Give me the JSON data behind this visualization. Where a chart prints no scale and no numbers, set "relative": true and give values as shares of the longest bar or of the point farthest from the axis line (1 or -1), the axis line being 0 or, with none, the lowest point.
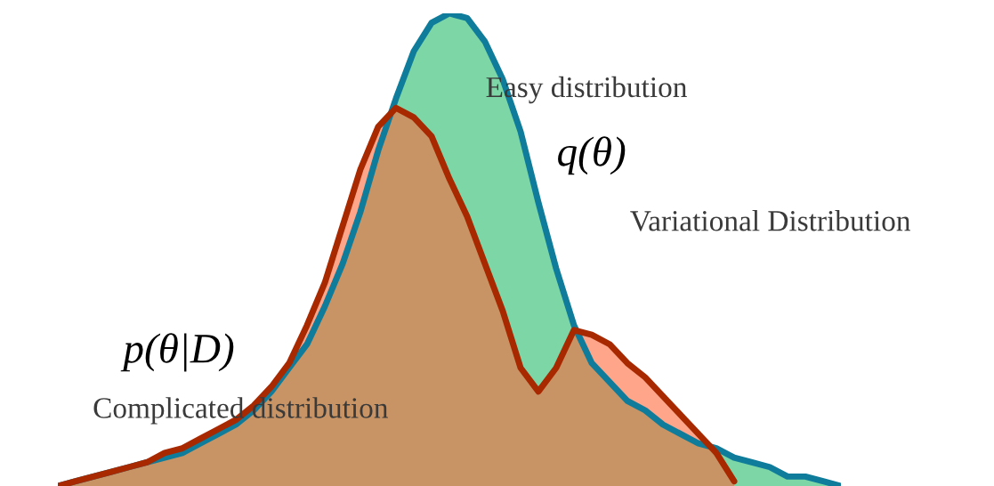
{
  "chart_data": {
    "type": "area",
    "relative": true,
    "categories": [
      null,
      null,
      null,
      null,
      null,
      null,
      null,
      null,
      null,
      null,
      null,
      null,
      null,
      null,
      null,
      null,
      null,
      null,
      null,
      null,
      null,
      null,
      null,
      null,
      null,
      null,
      null,
      null,
      null,
      null,
      null,
      null,
      null,
      null,
      null,
      null,
      null,
      null,
      null,
      null,
      null,
      null,
      null,
      null,
      null
    ],
    "series": [
      {
        "color": "#0e7c9a",
        "values": [
          0,
          0.01,
          0.02,
          0.03,
          0.04,
          0.05,
          0.06,
          0.07,
          0.09,
          0.11,
          0.13,
          0.16,
          0.2,
          0.25,
          0.3,
          0.38,
          0.47,
          0.58,
          0.71,
          0.82,
          0.92,
          0.98,
          1,
          0.99,
          0.94,
          0.86,
          0.75,
          0.6,
          0.46,
          0.34,
          0.26,
          0.22,
          0.18,
          0.16,
          0.13,
          0.11,
          0.09,
          0.08,
          0.06,
          0.05,
          0.04,
          0.02,
          0.02,
          0.01,
          0
        ]
      },
      {
        "color": "#a82800",
        "values": [
          0,
          0.01,
          0.02,
          0.03,
          0.04,
          0.05,
          0.07,
          0.08,
          0.1,
          0.12,
          0.14,
          0.17,
          0.21,
          0.26,
          0.34,
          0.43,
          0.55,
          0.67,
          0.76,
          0.8,
          0.78,
          0.74,
          0.65,
          0.57,
          0.47,
          0.37,
          0.25,
          0.2,
          0.25,
          0.33,
          0.32,
          0.3,
          0.26,
          0.23,
          0.19,
          0.15,
          0.11,
          0.07,
          0.01,
          null,
          null,
          null,
          null,
          null,
          null
        ]
      }
    ],
    "annotations": [
      "Easy distribution",
      "q(θ)",
      "Variational Distribution",
      "p(θ|D)",
      "Complicated distribution"
    ]
  }
}
